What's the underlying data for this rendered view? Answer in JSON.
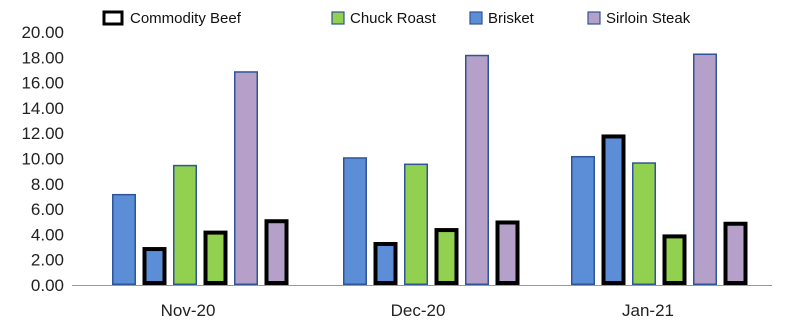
{
  "chart_data": {
    "type": "bar",
    "title": "",
    "xlabel": "",
    "ylabel": "",
    "ylim": [
      0,
      20
    ],
    "y_ticks": [
      "0.00",
      "2.00",
      "4.00",
      "6.00",
      "8.00",
      "10.00",
      "12.00",
      "14.00",
      "16.00",
      "18.00",
      "20.00"
    ],
    "grid": false,
    "legend_position": "top",
    "categories": [
      "Nov-20",
      "Dec-20",
      "Jan-21"
    ],
    "legend": [
      {
        "name": "Commodity Beef",
        "fill": "#ffffff",
        "border": "#000000"
      },
      {
        "name": "Chuck Roast",
        "fill": "#92d050",
        "border": "#2f5597"
      },
      {
        "name": "Brisket",
        "fill": "#5b8ed6",
        "border": "#2f5597"
      },
      {
        "name": "Sirloin Steak",
        "fill": "#b4a0c8",
        "border": "#2f5597"
      }
    ],
    "bars": [
      [
        {
          "value": 7.2,
          "fill": "#5b8ed6",
          "outline": "thin"
        },
        {
          "value": 3.0,
          "fill": "#5b8ed6",
          "outline": "thick"
        },
        {
          "value": 9.5,
          "fill": "#92d050",
          "outline": "thin"
        },
        {
          "value": 4.3,
          "fill": "#92d050",
          "outline": "thick"
        },
        {
          "value": 16.9,
          "fill": "#b4a0c8",
          "outline": "thin"
        },
        {
          "value": 5.2,
          "fill": "#b4a0c8",
          "outline": "thick"
        }
      ],
      [
        {
          "value": 10.1,
          "fill": "#5b8ed6",
          "outline": "thin"
        },
        {
          "value": 3.4,
          "fill": "#5b8ed6",
          "outline": "thick"
        },
        {
          "value": 9.6,
          "fill": "#92d050",
          "outline": "thin"
        },
        {
          "value": 4.5,
          "fill": "#92d050",
          "outline": "thick"
        },
        {
          "value": 18.2,
          "fill": "#b4a0c8",
          "outline": "thin"
        },
        {
          "value": 5.1,
          "fill": "#b4a0c8",
          "outline": "thick"
        }
      ],
      [
        {
          "value": 10.2,
          "fill": "#5b8ed6",
          "outline": "thin"
        },
        {
          "value": 11.9,
          "fill": "#5b8ed6",
          "outline": "thick"
        },
        {
          "value": 9.7,
          "fill": "#92d050",
          "outline": "thin"
        },
        {
          "value": 4.0,
          "fill": "#92d050",
          "outline": "thick"
        },
        {
          "value": 18.3,
          "fill": "#b4a0c8",
          "outline": "thin"
        },
        {
          "value": 5.0,
          "fill": "#b4a0c8",
          "outline": "thick"
        }
      ]
    ],
    "colors": {
      "thin_outline": "#2f5597",
      "thick_outline": "#000000",
      "axis": "#999999"
    }
  }
}
